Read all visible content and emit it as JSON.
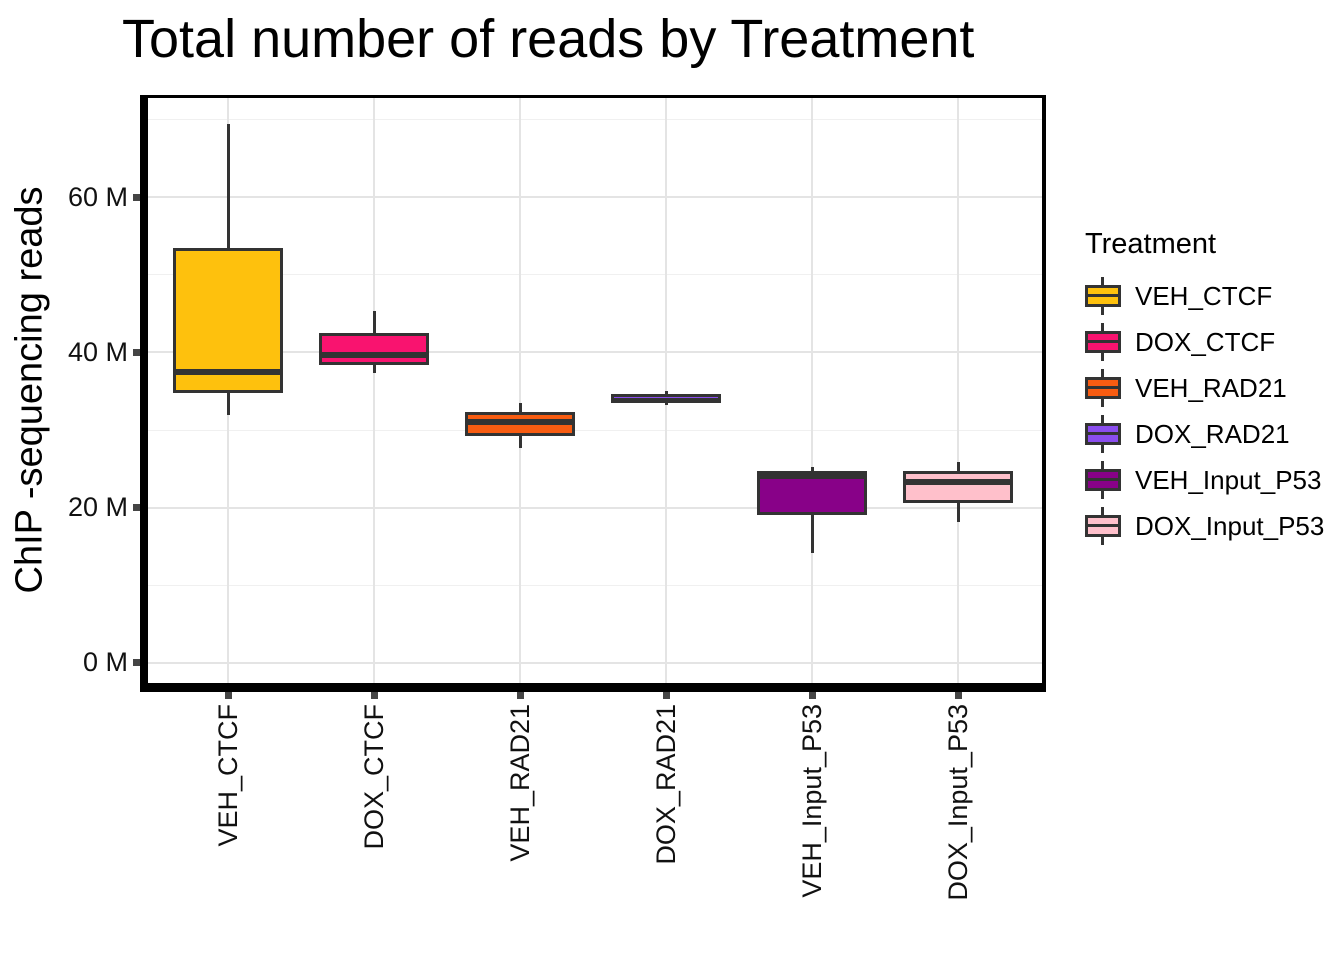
{
  "title": "Total number of reads by Treatment",
  "axes": {
    "y_label": "ChIP -sequencing reads",
    "x_label": ""
  },
  "legend": {
    "title": "Treatment"
  },
  "colors": {
    "box_border": "#333333",
    "whisker": "#333333",
    "median": "#333333",
    "axis_line": "#000000",
    "tick_mark": "#454545",
    "grid_major": "#E4E4E4",
    "grid_minor": "#F0F0F0",
    "text": "#000000",
    "panel_background": "#FFFFFF"
  },
  "chart_data": {
    "type": "boxplot",
    "title": "Total number of reads by Treatment",
    "ylabel": "ChIP -sequencing reads",
    "y_unit": "millions of reads (M)",
    "legend_title": "Treatment",
    "legend_position": "right",
    "grid": true,
    "categories": [
      "VEH_CTCF",
      "DOX_CTCF",
      "VEH_RAD21",
      "DOX_RAD21",
      "VEH_Input_P53",
      "DOX_Input_P53"
    ],
    "series": [
      {
        "name": "VEH_CTCF",
        "color": "#FEC10D",
        "whisker_min": 32.0,
        "q1": 34.8,
        "median": 37.5,
        "q3": 53.5,
        "whisker_max": 69.5
      },
      {
        "name": "DOX_CTCF",
        "color": "#F9136F",
        "whisker_min": 37.3,
        "q1": 38.4,
        "median": 39.7,
        "q3": 42.5,
        "whisker_max": 45.4
      },
      {
        "name": "VEH_RAD21",
        "color": "#F85C11",
        "whisker_min": 27.7,
        "q1": 29.2,
        "median": 31.0,
        "q3": 32.3,
        "whisker_max": 33.5
      },
      {
        "name": "DOX_RAD21",
        "color": "#8A4DEE",
        "whisker_min": 33.2,
        "q1": 33.5,
        "median": 34.0,
        "q3": 34.6,
        "whisker_max": 35.0
      },
      {
        "name": "VEH_Input_P53",
        "color": "#880188",
        "whisker_min": 14.2,
        "q1": 19.1,
        "median": 24.1,
        "q3": 24.7,
        "whisker_max": 25.2
      },
      {
        "name": "DOX_Input_P53",
        "color": "#FFC0CB",
        "whisker_min": 18.2,
        "q1": 20.6,
        "median": 23.3,
        "q3": 24.7,
        "whisker_max": 25.9
      }
    ],
    "ylim": [
      -2.6,
      72.8
    ],
    "yticks": [
      {
        "value": 0,
        "label": "0 M"
      },
      {
        "value": 20,
        "label": "20 M"
      },
      {
        "value": 40,
        "label": "40 M"
      },
      {
        "value": 60,
        "label": "60 M"
      }
    ],
    "yticks_minor": [
      10,
      30,
      50,
      70
    ]
  }
}
